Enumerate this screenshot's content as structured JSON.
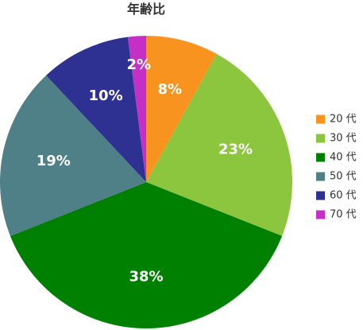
{
  "chart_data": {
    "type": "pie",
    "title": "年齢比",
    "categories": [
      "20 代",
      "30 代",
      "40 代",
      "50 代",
      "60 代",
      "70 代"
    ],
    "values": [
      8,
      23,
      38,
      19,
      10,
      2
    ],
    "value_labels": [
      "8%",
      "23%",
      "38%",
      "19%",
      "10%",
      "2%"
    ],
    "colors": [
      "#f7931e",
      "#8cc63f",
      "#008000",
      "#4f7f87",
      "#2e3192",
      "#c62fc6"
    ],
    "start_angle_deg": 0,
    "direction": "clockwise",
    "legend_position": "right"
  }
}
